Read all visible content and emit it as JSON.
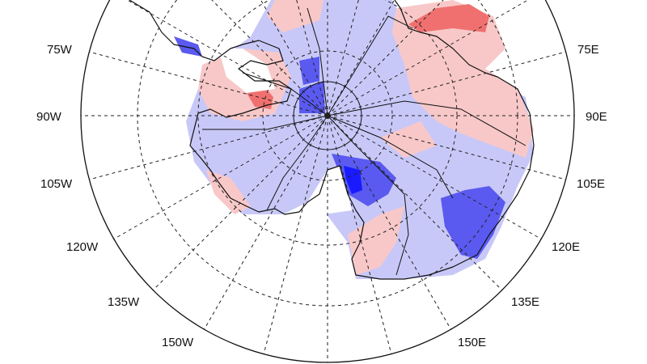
{
  "map": {
    "type": "polar-stereographic-south",
    "longitude_labels": [
      {
        "lon": "75W"
      },
      {
        "lon": "90W"
      },
      {
        "lon": "105W"
      },
      {
        "lon": "120W"
      },
      {
        "lon": "135W"
      },
      {
        "lon": "150W"
      },
      {
        "lon": "75E"
      },
      {
        "lon": "90E"
      },
      {
        "lon": "105E"
      },
      {
        "lon": "120E"
      },
      {
        "lon": "135E"
      },
      {
        "lon": "150E"
      }
    ],
    "colors": {
      "strong_negative": "#1a1aff",
      "negative": "#5a5af0",
      "weak_negative": "#c8c8f8",
      "neutral": "#ffffff",
      "weak_positive": "#f8c8c8",
      "positive": "#f07070",
      "strong_positive": "#e83030"
    }
  }
}
